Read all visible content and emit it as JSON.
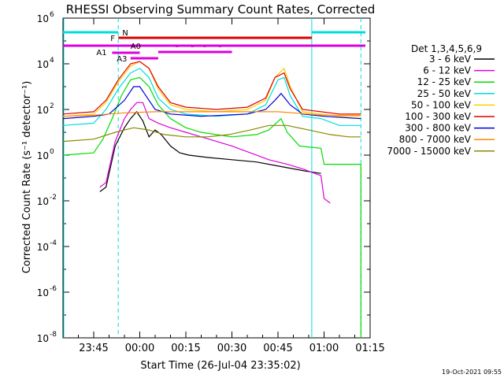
{
  "chart_data": {
    "type": "line",
    "title": "RHESSI Observing Summary Count Rates, Corrected",
    "xlabel": "Start Time (26-Jul-04 23:35:02)",
    "ylabel": "Corrected Count Rate (s⁻¹ detector⁻¹)",
    "yscale": "log",
    "ylim_exp": [
      -8,
      6
    ],
    "xlim": [
      "23:35",
      "01:15"
    ],
    "x_ticks": [
      "23:45",
      "00:00",
      "00:15",
      "00:30",
      "00:45",
      "01:00",
      "01:15"
    ],
    "y_ticks": [
      "10^6",
      "10^4",
      "10^2",
      "10^0",
      "10^-2",
      "10^-4",
      "10^-6",
      "10^-8"
    ],
    "legend_title": "Det 1,3,4,5,6,9",
    "legend_position": "right",
    "series": [
      {
        "name": "3 - 6 keV",
        "color": "#000000",
        "points": [
          [
            "23:47",
            -1.6
          ],
          [
            "23:49",
            -1.4
          ],
          [
            "23:52",
            0.4
          ],
          [
            "23:55",
            1.2
          ],
          [
            "23:57",
            1.6
          ],
          [
            "23:59",
            1.9
          ],
          [
            "00:01",
            1.5
          ],
          [
            "00:03",
            0.8
          ],
          [
            "00:05",
            1.1
          ],
          [
            "00:07",
            0.9
          ],
          [
            "00:10",
            0.4
          ],
          [
            "00:13",
            0.1
          ],
          [
            "00:16",
            0.0
          ],
          [
            "00:22",
            -0.1
          ],
          [
            "00:30",
            -0.2
          ],
          [
            "00:38",
            -0.3
          ],
          [
            "00:46",
            -0.5
          ],
          [
            "00:54",
            -0.7
          ],
          [
            "00:59",
            -0.8
          ]
        ]
      },
      {
        "name": "6 - 12 keV",
        "color": "#dd00dd",
        "points": [
          [
            "23:47",
            -1.4
          ],
          [
            "23:49",
            -1.2
          ],
          [
            "23:52",
            0.6
          ],
          [
            "23:55",
            1.6
          ],
          [
            "23:57",
            2.0
          ],
          [
            "23:59",
            2.3
          ],
          [
            "00:01",
            2.3
          ],
          [
            "00:03",
            1.6
          ],
          [
            "00:06",
            1.4
          ],
          [
            "00:10",
            1.2
          ],
          [
            "00:15",
            1.0
          ],
          [
            "00:20",
            0.8
          ],
          [
            "00:25",
            0.6
          ],
          [
            "00:30",
            0.4
          ],
          [
            "00:36",
            0.1
          ],
          [
            "00:42",
            -0.2
          ],
          [
            "00:48",
            -0.4
          ],
          [
            "00:53",
            -0.6
          ],
          [
            "00:59",
            -0.9
          ],
          [
            "01:00",
            -1.9
          ],
          [
            "01:02",
            -2.1
          ]
        ]
      },
      {
        "name": "12 - 25 keV",
        "color": "#00dd00",
        "points": [
          [
            "23:35",
            0.0
          ],
          [
            "23:45",
            0.1
          ],
          [
            "23:48",
            0.7
          ],
          [
            "23:51",
            1.6
          ],
          [
            "23:54",
            2.6
          ],
          [
            "23:57",
            3.3
          ],
          [
            "00:00",
            3.4
          ],
          [
            "00:03",
            3.0
          ],
          [
            "00:06",
            2.2
          ],
          [
            "00:10",
            1.6
          ],
          [
            "00:15",
            1.2
          ],
          [
            "00:20",
            1.0
          ],
          [
            "00:30",
            0.8
          ],
          [
            "00:38",
            0.9
          ],
          [
            "00:42",
            1.1
          ],
          [
            "00:46",
            1.6
          ],
          [
            "00:48",
            1.0
          ],
          [
            "00:52",
            0.4
          ],
          [
            "00:59",
            0.3
          ],
          [
            "01:00",
            -0.4
          ],
          [
            "01:05",
            -0.4
          ],
          [
            "01:12",
            -0.4
          ],
          [
            "01:12",
            -8.0
          ]
        ]
      },
      {
        "name": "25 - 50 keV",
        "color": "#00dddd",
        "points": [
          [
            "23:35",
            1.3
          ],
          [
            "23:45",
            1.4
          ],
          [
            "23:49",
            2.0
          ],
          [
            "23:53",
            2.9
          ],
          [
            "23:57",
            3.6
          ],
          [
            "00:00",
            3.8
          ],
          [
            "00:03",
            3.4
          ],
          [
            "00:06",
            2.5
          ],
          [
            "00:10",
            2.0
          ],
          [
            "00:15",
            1.8
          ],
          [
            "00:25",
            1.7
          ],
          [
            "00:35",
            1.8
          ],
          [
            "00:41",
            2.2
          ],
          [
            "00:45",
            3.3
          ],
          [
            "00:47",
            3.4
          ],
          [
            "00:49",
            2.6
          ],
          [
            "00:53",
            1.7
          ],
          [
            "00:59",
            1.6
          ],
          [
            "01:05",
            1.3
          ],
          [
            "01:12",
            1.3
          ]
        ]
      },
      {
        "name": "50 - 100 keV",
        "color": "#ffcc00",
        "points": [
          [
            "23:35",
            1.7
          ],
          [
            "23:45",
            1.8
          ],
          [
            "23:49",
            2.3
          ],
          [
            "23:53",
            3.2
          ],
          [
            "23:57",
            3.9
          ],
          [
            "00:00",
            4.1
          ],
          [
            "00:03",
            3.8
          ],
          [
            "00:06",
            2.9
          ],
          [
            "00:10",
            2.2
          ],
          [
            "00:15",
            2.0
          ],
          [
            "00:25",
            1.9
          ],
          [
            "00:35",
            2.0
          ],
          [
            "00:41",
            2.4
          ],
          [
            "00:44",
            3.4
          ],
          [
            "00:47",
            3.8
          ],
          [
            "00:49",
            3.0
          ],
          [
            "00:53",
            1.9
          ],
          [
            "00:59",
            1.8
          ],
          [
            "01:05",
            1.7
          ],
          [
            "01:12",
            1.7
          ]
        ]
      },
      {
        "name": "100 - 300 keV",
        "color": "#dd0000",
        "points": [
          [
            "23:35",
            1.8
          ],
          [
            "23:45",
            1.9
          ],
          [
            "23:49",
            2.4
          ],
          [
            "23:53",
            3.3
          ],
          [
            "23:57",
            4.0
          ],
          [
            "00:00",
            4.1
          ],
          [
            "00:03",
            3.8
          ],
          [
            "00:06",
            3.0
          ],
          [
            "00:10",
            2.3
          ],
          [
            "00:15",
            2.1
          ],
          [
            "00:25",
            2.0
          ],
          [
            "00:35",
            2.1
          ],
          [
            "00:41",
            2.5
          ],
          [
            "00:44",
            3.4
          ],
          [
            "00:47",
            3.6
          ],
          [
            "00:49",
            2.9
          ],
          [
            "00:53",
            2.0
          ],
          [
            "00:59",
            1.9
          ],
          [
            "01:05",
            1.8
          ],
          [
            "01:12",
            1.8
          ]
        ]
      },
      {
        "name": "300 - 800 keV",
        "color": "#0000dd",
        "points": [
          [
            "23:35",
            1.6
          ],
          [
            "23:45",
            1.7
          ],
          [
            "23:50",
            1.8
          ],
          [
            "23:55",
            2.4
          ],
          [
            "23:58",
            3.0
          ],
          [
            "00:00",
            3.0
          ],
          [
            "00:02",
            2.6
          ],
          [
            "00:05",
            2.0
          ],
          [
            "00:10",
            1.8
          ],
          [
            "00:20",
            1.7
          ],
          [
            "00:35",
            1.8
          ],
          [
            "00:41",
            2.0
          ],
          [
            "00:44",
            2.4
          ],
          [
            "00:46",
            2.7
          ],
          [
            "00:49",
            2.2
          ],
          [
            "00:53",
            1.8
          ],
          [
            "01:00",
            1.7
          ],
          [
            "01:12",
            1.6
          ]
        ]
      },
      {
        "name": "800 - 7000 keV",
        "color": "#ff8800",
        "points": [
          [
            "23:35",
            1.7
          ],
          [
            "23:45",
            1.75
          ],
          [
            "23:55",
            1.85
          ],
          [
            "00:05",
            1.9
          ],
          [
            "00:15",
            1.9
          ],
          [
            "00:30",
            1.9
          ],
          [
            "00:45",
            1.9
          ],
          [
            "01:00",
            1.75
          ],
          [
            "01:12",
            1.75
          ]
        ]
      },
      {
        "name": "7000 - 15000 keV",
        "color": "#888800",
        "points": [
          [
            "23:35",
            0.6
          ],
          [
            "23:45",
            0.7
          ],
          [
            "23:52",
            1.0
          ],
          [
            "23:58",
            1.2
          ],
          [
            "00:03",
            1.1
          ],
          [
            "00:08",
            0.9
          ],
          [
            "00:15",
            0.8
          ],
          [
            "00:22",
            0.8
          ],
          [
            "00:29",
            0.9
          ],
          [
            "00:36",
            1.1
          ],
          [
            "00:42",
            1.3
          ],
          [
            "00:48",
            1.3
          ],
          [
            "00:55",
            1.1
          ],
          [
            "01:02",
            0.9
          ],
          [
            "01:08",
            0.8
          ],
          [
            "01:12",
            0.8
          ]
        ]
      }
    ],
    "flag_labels": [
      "N",
      "F",
      "A0",
      "A1",
      "A3"
    ],
    "annotations": [
      "23:53",
      "00:56",
      "01:12"
    ]
  },
  "footer": {
    "date": "19-Oct-2021 09:55"
  }
}
